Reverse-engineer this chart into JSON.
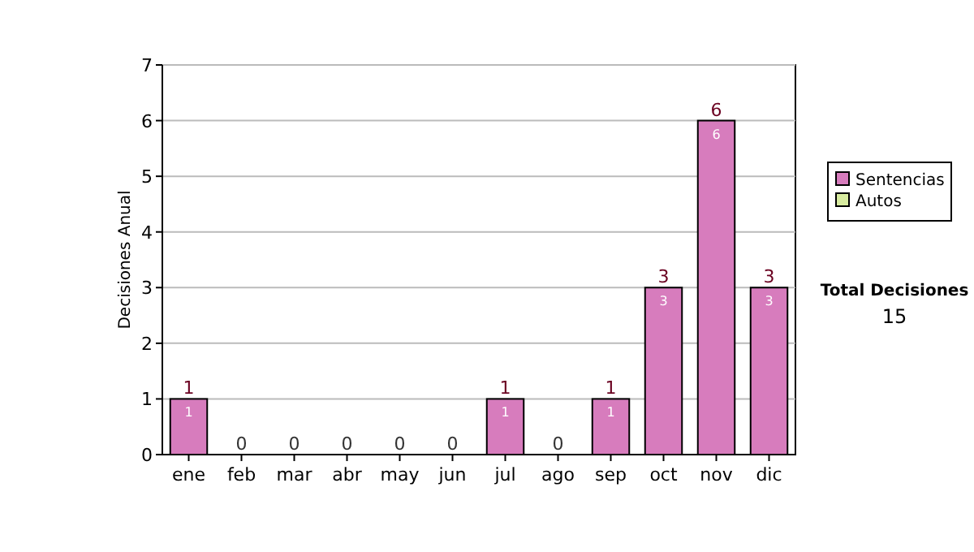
{
  "chart_data": {
    "type": "bar",
    "ylabel": "Decisiones Anual",
    "categories": [
      "ene",
      "feb",
      "mar",
      "abr",
      "may",
      "jun",
      "jul",
      "ago",
      "sep",
      "oct",
      "nov",
      "dic"
    ],
    "series": [
      {
        "name": "Sentencias",
        "color": "#d77cbd",
        "values": [
          1,
          0,
          0,
          0,
          0,
          0,
          1,
          0,
          1,
          3,
          6,
          3
        ],
        "value_labels": [
          "1",
          null,
          null,
          null,
          null,
          null,
          "1",
          null,
          "1",
          "3",
          "6",
          "3"
        ]
      },
      {
        "name": "Autos",
        "color": "#d8eca0",
        "values": [
          0,
          0,
          0,
          0,
          0,
          0,
          0,
          0,
          0,
          0,
          0,
          0
        ]
      }
    ],
    "stacked": true,
    "totals": [
      "1",
      "0",
      "0",
      "0",
      "0",
      "0",
      "1",
      "0",
      "1",
      "3",
      "6",
      "3"
    ],
    "ylim": [
      0,
      7
    ],
    "yticks": [
      0,
      1,
      2,
      3,
      4,
      5,
      6,
      7
    ],
    "grid": "y",
    "legend": "right",
    "annotations": [
      "Total Decisiones",
      "15"
    ]
  }
}
